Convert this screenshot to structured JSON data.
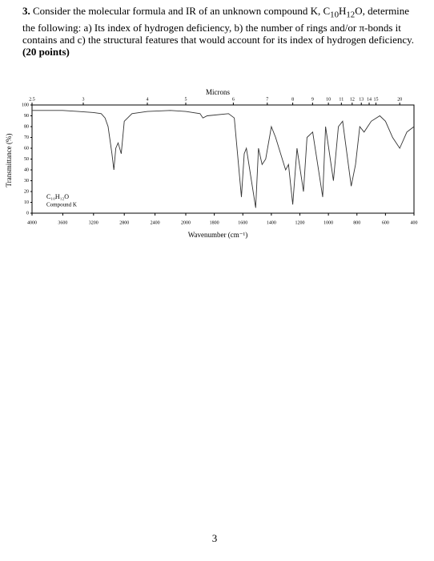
{
  "question": {
    "number": "3.",
    "text_1": " Consider the molecular formula and IR of an unknown compound K, C",
    "sub_1": "10",
    "text_2": "H",
    "sub_2": "12",
    "text_3": "O, determine the following: a) Its index of hydrogen deficiency, b) the number of rings and/or π-bonds it contains and c) the structural features that would account for its index of hydrogen deficiency. ",
    "points": "(20 points)"
  },
  "chart_data": {
    "type": "line",
    "x_label_top": "Microns",
    "x_label": "Wavenumber (cm⁻¹)",
    "y_label": "Transmittance (%)",
    "annotations": [
      "C₁₀H₁₂O",
      "Compound K"
    ],
    "color": "#333333",
    "xlim": [
      4000,
      400
    ],
    "x_break": 2000,
    "xticks": [
      4000,
      3600,
      3200,
      2800,
      2400,
      2000,
      1800,
      1600,
      1400,
      1200,
      1000,
      800,
      600,
      400
    ],
    "x2ticks": [
      2.5,
      3,
      4,
      5,
      6,
      7,
      8,
      9,
      10,
      11,
      12,
      13,
      14,
      15,
      20
    ],
    "ylim": [
      0,
      100
    ],
    "yticks": [
      0,
      10,
      20,
      30,
      40,
      50,
      60,
      70,
      80,
      90,
      100
    ],
    "x": [
      4000,
      3800,
      3600,
      3400,
      3200,
      3100,
      3050,
      3010,
      2960,
      2935,
      2910,
      2880,
      2840,
      2800,
      2700,
      2500,
      2200,
      2000,
      1900,
      1880,
      1850,
      1700,
      1660,
      1610,
      1590,
      1575,
      1510,
      1490,
      1465,
      1440,
      1400,
      1370,
      1300,
      1280,
      1250,
      1220,
      1175,
      1150,
      1110,
      1040,
      1020,
      965,
      930,
      900,
      840,
      810,
      780,
      750,
      700,
      640,
      600,
      550,
      500,
      450,
      400
    ],
    "values": [
      95,
      95,
      95,
      94,
      93,
      92,
      88,
      80,
      55,
      40,
      60,
      65,
      55,
      85,
      92,
      94,
      95,
      94,
      92,
      88,
      90,
      92,
      88,
      15,
      55,
      60,
      5,
      60,
      45,
      50,
      80,
      70,
      40,
      45,
      8,
      60,
      20,
      70,
      75,
      15,
      80,
      30,
      80,
      85,
      25,
      45,
      80,
      75,
      85,
      90,
      85,
      70,
      60,
      75,
      80
    ]
  }
}
